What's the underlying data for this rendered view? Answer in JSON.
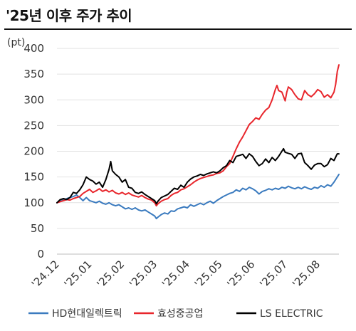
{
  "chart_data": {
    "type": "line",
    "title": "'25년 이후 주가 추이",
    "unit": "(pt)",
    "ylim": [
      0,
      400
    ],
    "y_ticks": [
      0,
      50,
      100,
      150,
      200,
      250,
      300,
      350,
      400
    ],
    "x_ticks": [
      "'24.12",
      "'25.01",
      "'25.02",
      "'25.03",
      "'25.04",
      "'25.05",
      "'25.06",
      "'25.07",
      "'25.08"
    ],
    "grid": "horizontal",
    "legend_position": "bottom",
    "series": [
      {
        "name": "HD현대일렉트릭",
        "color": "#3b7bbf",
        "points": [
          [
            0,
            100
          ],
          [
            0.1,
            103
          ],
          [
            0.2,
            105
          ],
          [
            0.3,
            108
          ],
          [
            0.4,
            110
          ],
          [
            0.5,
            112
          ],
          [
            0.6,
            115
          ],
          [
            0.7,
            110
          ],
          [
            0.8,
            104
          ],
          [
            0.9,
            110
          ],
          [
            1.0,
            104
          ],
          [
            1.1,
            102
          ],
          [
            1.2,
            100
          ],
          [
            1.3,
            103
          ],
          [
            1.4,
            99
          ],
          [
            1.5,
            97
          ],
          [
            1.6,
            100
          ],
          [
            1.7,
            96
          ],
          [
            1.8,
            94
          ],
          [
            1.9,
            96
          ],
          [
            2.0,
            92
          ],
          [
            2.1,
            88
          ],
          [
            2.2,
            90
          ],
          [
            2.3,
            87
          ],
          [
            2.4,
            90
          ],
          [
            2.5,
            86
          ],
          [
            2.6,
            84
          ],
          [
            2.7,
            86
          ],
          [
            2.8,
            82
          ],
          [
            2.9,
            78
          ],
          [
            3.0,
            74
          ],
          [
            3.05,
            69
          ],
          [
            3.1,
            72
          ],
          [
            3.2,
            77
          ],
          [
            3.3,
            80
          ],
          [
            3.4,
            78
          ],
          [
            3.5,
            84
          ],
          [
            3.6,
            83
          ],
          [
            3.7,
            88
          ],
          [
            3.8,
            90
          ],
          [
            3.9,
            92
          ],
          [
            4.0,
            90
          ],
          [
            4.1,
            96
          ],
          [
            4.2,
            93
          ],
          [
            4.3,
            96
          ],
          [
            4.4,
            99
          ],
          [
            4.5,
            96
          ],
          [
            4.6,
            100
          ],
          [
            4.7,
            103
          ],
          [
            4.8,
            99
          ],
          [
            4.9,
            104
          ],
          [
            5.0,
            108
          ],
          [
            5.1,
            112
          ],
          [
            5.2,
            115
          ],
          [
            5.3,
            118
          ],
          [
            5.4,
            120
          ],
          [
            5.5,
            125
          ],
          [
            5.6,
            122
          ],
          [
            5.7,
            128
          ],
          [
            5.8,
            125
          ],
          [
            5.9,
            130
          ],
          [
            6.0,
            127
          ],
          [
            6.1,
            123
          ],
          [
            6.2,
            117
          ],
          [
            6.3,
            122
          ],
          [
            6.4,
            124
          ],
          [
            6.5,
            127
          ],
          [
            6.6,
            125
          ],
          [
            6.7,
            128
          ],
          [
            6.8,
            126
          ],
          [
            6.9,
            130
          ],
          [
            7.0,
            128
          ],
          [
            7.1,
            132
          ],
          [
            7.2,
            129
          ],
          [
            7.3,
            127
          ],
          [
            7.4,
            130
          ],
          [
            7.5,
            127
          ],
          [
            7.6,
            131
          ],
          [
            7.7,
            128
          ],
          [
            7.8,
            126
          ],
          [
            7.9,
            130
          ],
          [
            8.0,
            128
          ],
          [
            8.1,
            133
          ],
          [
            8.2,
            130
          ],
          [
            8.3,
            135
          ],
          [
            8.4,
            132
          ],
          [
            8.5,
            140
          ],
          [
            8.6,
            150
          ],
          [
            8.65,
            155
          ]
        ]
      },
      {
        "name": "효성중공업",
        "color": "#e8262c",
        "points": [
          [
            0,
            100
          ],
          [
            0.1,
            102
          ],
          [
            0.2,
            104
          ],
          [
            0.3,
            106
          ],
          [
            0.4,
            105
          ],
          [
            0.5,
            108
          ],
          [
            0.6,
            110
          ],
          [
            0.7,
            112
          ],
          [
            0.8,
            118
          ],
          [
            0.9,
            122
          ],
          [
            1.0,
            126
          ],
          [
            1.1,
            120
          ],
          [
            1.2,
            123
          ],
          [
            1.3,
            127
          ],
          [
            1.4,
            122
          ],
          [
            1.5,
            125
          ],
          [
            1.6,
            121
          ],
          [
            1.7,
            124
          ],
          [
            1.8,
            119
          ],
          [
            1.9,
            117
          ],
          [
            2.0,
            120
          ],
          [
            2.1,
            116
          ],
          [
            2.2,
            119
          ],
          [
            2.3,
            115
          ],
          [
            2.4,
            113
          ],
          [
            2.5,
            111
          ],
          [
            2.6,
            114
          ],
          [
            2.7,
            110
          ],
          [
            2.8,
            107
          ],
          [
            2.9,
            105
          ],
          [
            3.0,
            100
          ],
          [
            3.05,
            94
          ],
          [
            3.1,
            98
          ],
          [
            3.2,
            103
          ],
          [
            3.3,
            106
          ],
          [
            3.4,
            108
          ],
          [
            3.5,
            114
          ],
          [
            3.6,
            118
          ],
          [
            3.7,
            120
          ],
          [
            3.8,
            125
          ],
          [
            3.9,
            127
          ],
          [
            4.0,
            131
          ],
          [
            4.1,
            135
          ],
          [
            4.2,
            140
          ],
          [
            4.3,
            144
          ],
          [
            4.4,
            147
          ],
          [
            4.5,
            149
          ],
          [
            4.6,
            151
          ],
          [
            4.7,
            153
          ],
          [
            4.8,
            154
          ],
          [
            4.9,
            157
          ],
          [
            5.0,
            158
          ],
          [
            5.1,
            162
          ],
          [
            5.2,
            170
          ],
          [
            5.3,
            176
          ],
          [
            5.4,
            190
          ],
          [
            5.5,
            205
          ],
          [
            5.6,
            218
          ],
          [
            5.7,
            228
          ],
          [
            5.8,
            240
          ],
          [
            5.9,
            252
          ],
          [
            6.0,
            258
          ],
          [
            6.1,
            265
          ],
          [
            6.2,
            262
          ],
          [
            6.3,
            272
          ],
          [
            6.4,
            280
          ],
          [
            6.5,
            285
          ],
          [
            6.6,
            300
          ],
          [
            6.7,
            320
          ],
          [
            6.75,
            328
          ],
          [
            6.8,
            318
          ],
          [
            6.9,
            315
          ],
          [
            7.0,
            298
          ],
          [
            7.05,
            315
          ],
          [
            7.1,
            325
          ],
          [
            7.2,
            320
          ],
          [
            7.3,
            310
          ],
          [
            7.4,
            302
          ],
          [
            7.5,
            300
          ],
          [
            7.6,
            318
          ],
          [
            7.7,
            310
          ],
          [
            7.8,
            306
          ],
          [
            7.9,
            312
          ],
          [
            8.0,
            320
          ],
          [
            8.1,
            316
          ],
          [
            8.2,
            305
          ],
          [
            8.3,
            310
          ],
          [
            8.4,
            304
          ],
          [
            8.5,
            315
          ],
          [
            8.55,
            330
          ],
          [
            8.6,
            355
          ],
          [
            8.65,
            368
          ]
        ]
      },
      {
        "name": "LS ELECTRIC",
        "color": "#000000",
        "points": [
          [
            0,
            100
          ],
          [
            0.1,
            106
          ],
          [
            0.2,
            108
          ],
          [
            0.3,
            106
          ],
          [
            0.4,
            110
          ],
          [
            0.5,
            120
          ],
          [
            0.6,
            118
          ],
          [
            0.7,
            125
          ],
          [
            0.8,
            135
          ],
          [
            0.9,
            150
          ],
          [
            1.0,
            145
          ],
          [
            1.1,
            142
          ],
          [
            1.2,
            136
          ],
          [
            1.3,
            140
          ],
          [
            1.4,
            130
          ],
          [
            1.5,
            145
          ],
          [
            1.6,
            165
          ],
          [
            1.65,
            180
          ],
          [
            1.7,
            162
          ],
          [
            1.8,
            155
          ],
          [
            1.9,
            150
          ],
          [
            2.0,
            140
          ],
          [
            2.1,
            145
          ],
          [
            2.2,
            130
          ],
          [
            2.3,
            128
          ],
          [
            2.4,
            120
          ],
          [
            2.5,
            118
          ],
          [
            2.6,
            121
          ],
          [
            2.7,
            116
          ],
          [
            2.8,
            112
          ],
          [
            2.9,
            108
          ],
          [
            3.0,
            104
          ],
          [
            3.05,
            98
          ],
          [
            3.1,
            103
          ],
          [
            3.2,
            110
          ],
          [
            3.3,
            113
          ],
          [
            3.4,
            116
          ],
          [
            3.5,
            122
          ],
          [
            3.6,
            128
          ],
          [
            3.7,
            126
          ],
          [
            3.8,
            134
          ],
          [
            3.9,
            130
          ],
          [
            4.0,
            140
          ],
          [
            4.1,
            146
          ],
          [
            4.2,
            150
          ],
          [
            4.3,
            152
          ],
          [
            4.4,
            155
          ],
          [
            4.5,
            153
          ],
          [
            4.6,
            156
          ],
          [
            4.7,
            158
          ],
          [
            4.8,
            160
          ],
          [
            4.9,
            158
          ],
          [
            5.0,
            162
          ],
          [
            5.1,
            168
          ],
          [
            5.2,
            172
          ],
          [
            5.3,
            182
          ],
          [
            5.4,
            178
          ],
          [
            5.5,
            190
          ],
          [
            5.6,
            192
          ],
          [
            5.7,
            194
          ],
          [
            5.8,
            186
          ],
          [
            5.9,
            195
          ],
          [
            6.0,
            190
          ],
          [
            6.1,
            180
          ],
          [
            6.2,
            172
          ],
          [
            6.3,
            176
          ],
          [
            6.4,
            185
          ],
          [
            6.5,
            178
          ],
          [
            6.6,
            188
          ],
          [
            6.7,
            182
          ],
          [
            6.8,
            190
          ],
          [
            6.9,
            200
          ],
          [
            6.95,
            205
          ],
          [
            7.0,
            198
          ],
          [
            7.1,
            196
          ],
          [
            7.2,
            194
          ],
          [
            7.3,
            186
          ],
          [
            7.4,
            195
          ],
          [
            7.5,
            196
          ],
          [
            7.6,
            178
          ],
          [
            7.7,
            172
          ],
          [
            7.8,
            165
          ],
          [
            7.9,
            173
          ],
          [
            8.0,
            176
          ],
          [
            8.1,
            176
          ],
          [
            8.2,
            170
          ],
          [
            8.3,
            174
          ],
          [
            8.4,
            186
          ],
          [
            8.5,
            182
          ],
          [
            8.6,
            195
          ],
          [
            8.65,
            195
          ]
        ]
      }
    ]
  }
}
